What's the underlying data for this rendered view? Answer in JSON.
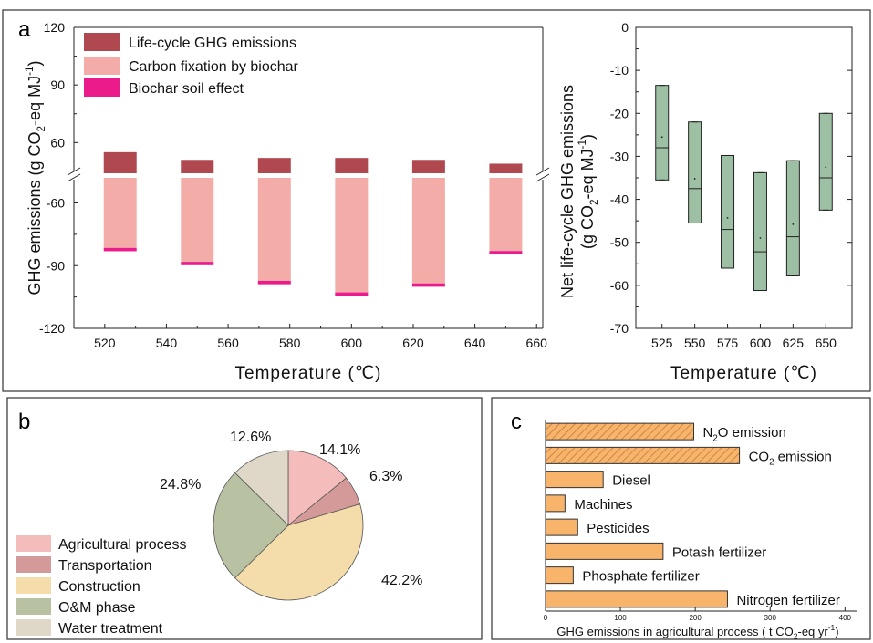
{
  "colors": {
    "lifecycle": "#b0484f",
    "fixation": "#f4aca8",
    "soil": "#ec1b8c",
    "box": "#9dbfa3",
    "frame": "#333333",
    "bar_c": "#f8b46a",
    "pie": [
      "#f5bcbc",
      "#d49a9a",
      "#f4ddaa",
      "#b8c2a2",
      "#dfd7c7"
    ]
  },
  "panel_labels": {
    "a": "a",
    "b": "b",
    "c": "c"
  },
  "chart_data": [
    {
      "id": "a-left",
      "type": "bar",
      "ylabel_parts": [
        "GHG emissions (g CO",
        "2",
        "-eq MJ",
        "-1",
        ")"
      ],
      "xlabel": "Temperature (℃)",
      "xlim": [
        510,
        662
      ],
      "xticks": [
        "520",
        "540",
        "560",
        "580",
        "600",
        "620",
        "640",
        "660"
      ],
      "upper_ylim": [
        44,
        120
      ],
      "upper_yticks": [
        "60",
        "90",
        "120"
      ],
      "lower_ylim": [
        -120,
        -48
      ],
      "lower_yticks": [
        "-120",
        "-90",
        "-60"
      ],
      "legend": [
        "Life-cycle GHG emissions",
        "Carbon fixation by biochar",
        "Biochar soil effect"
      ],
      "x": [
        525,
        550,
        575,
        600,
        625,
        650
      ],
      "series": [
        {
          "name": "Life-cycle GHG emissions",
          "values": [
            55,
            51,
            52,
            52,
            51,
            49
          ]
        },
        {
          "name": "Carbon fixation by biochar",
          "values": [
            -81.5,
            -88.2,
            -97.3,
            -102.8,
            -98.5,
            -83
          ]
        },
        {
          "name": "Biochar soil effect",
          "values": [
            -1.6,
            -1.6,
            -1.6,
            -1.6,
            -1.6,
            -1.6
          ]
        }
      ]
    },
    {
      "id": "a-right",
      "type": "box",
      "ylabel_line1": "Net life-cycle GHG emissions",
      "ylabel_line2_parts": [
        "(g CO",
        "2",
        "-eq MJ",
        "-1",
        ")"
      ],
      "xlabel": "Temperature (℃)",
      "ylim": [
        -70,
        0
      ],
      "yticks": [
        "0",
        "-10",
        "-20",
        "-30",
        "-40",
        "-50",
        "-60",
        "-70"
      ],
      "categories": [
        "525",
        "550",
        "575",
        "600",
        "625",
        "650"
      ],
      "boxes": [
        {
          "q1": -35.5,
          "median": -28,
          "q3": -13.5,
          "mean": -25.5,
          "min": -35.5,
          "max": -13.5
        },
        {
          "q1": -45.5,
          "median": -37.5,
          "q3": -22,
          "mean": -35.2,
          "min": -45.5,
          "max": -22
        },
        {
          "q1": -56,
          "median": -47,
          "q3": -29.8,
          "mean": -44.3,
          "min": -56,
          "max": -29.8
        },
        {
          "q1": -61.2,
          "median": -52.2,
          "q3": -33.8,
          "mean": -49,
          "min": -61.2,
          "max": -33.8
        },
        {
          "q1": -57.8,
          "median": -48.7,
          "q3": -31,
          "mean": -45.8,
          "min": -57.8,
          "max": -31
        },
        {
          "q1": -42.5,
          "median": -35,
          "q3": -20,
          "mean": -32.5,
          "min": -42.5,
          "max": -20
        }
      ]
    },
    {
      "id": "b",
      "type": "pie",
      "slices": [
        {
          "name": "Agricultural process",
          "value": 14.1,
          "label": "14.1%"
        },
        {
          "name": "Transportation",
          "value": 6.3,
          "label": "6.3%"
        },
        {
          "name": "Construction",
          "value": 42.2,
          "label": "42.2%"
        },
        {
          "name": "O&M phase",
          "value": 24.8,
          "label": "24.8%"
        },
        {
          "name": "Water treatment",
          "value": 12.6,
          "label": "12.6%"
        }
      ]
    },
    {
      "id": "c",
      "type": "bar",
      "orientation": "horizontal",
      "xlabel_parts": [
        "GHG emissions in agricultural process ( t CO",
        "2",
        "-eq yr",
        "-1",
        ")"
      ],
      "xlim": [
        0,
        400
      ],
      "xticks": [
        "0",
        "100",
        "200",
        "300",
        "400"
      ],
      "categories": [
        {
          "name": "N2O emission",
          "parts": [
            "N",
            "2",
            "O emission"
          ],
          "value": 198,
          "hatch": true
        },
        {
          "name": "CO2 emission",
          "parts": [
            "CO",
            "2",
            " emission"
          ],
          "value": 259,
          "hatch": true
        },
        {
          "name": "Diesel",
          "parts": [
            "Diesel"
          ],
          "value": 77,
          "hatch": false
        },
        {
          "name": "Machines",
          "parts": [
            "Machines"
          ],
          "value": 26,
          "hatch": false
        },
        {
          "name": "Pesticides",
          "parts": [
            "Pesticides"
          ],
          "value": 43,
          "hatch": false
        },
        {
          "name": "Potash fertilizer",
          "parts": [
            "Potash fertilizer"
          ],
          "value": 157,
          "hatch": false
        },
        {
          "name": "Phosphate fertilizer",
          "parts": [
            "Phosphate fertilizer"
          ],
          "value": 37,
          "hatch": false
        },
        {
          "name": "Nitrogen fertilizer",
          "parts": [
            "Nitrogen fertilizer"
          ],
          "value": 243,
          "hatch": false
        }
      ]
    }
  ]
}
